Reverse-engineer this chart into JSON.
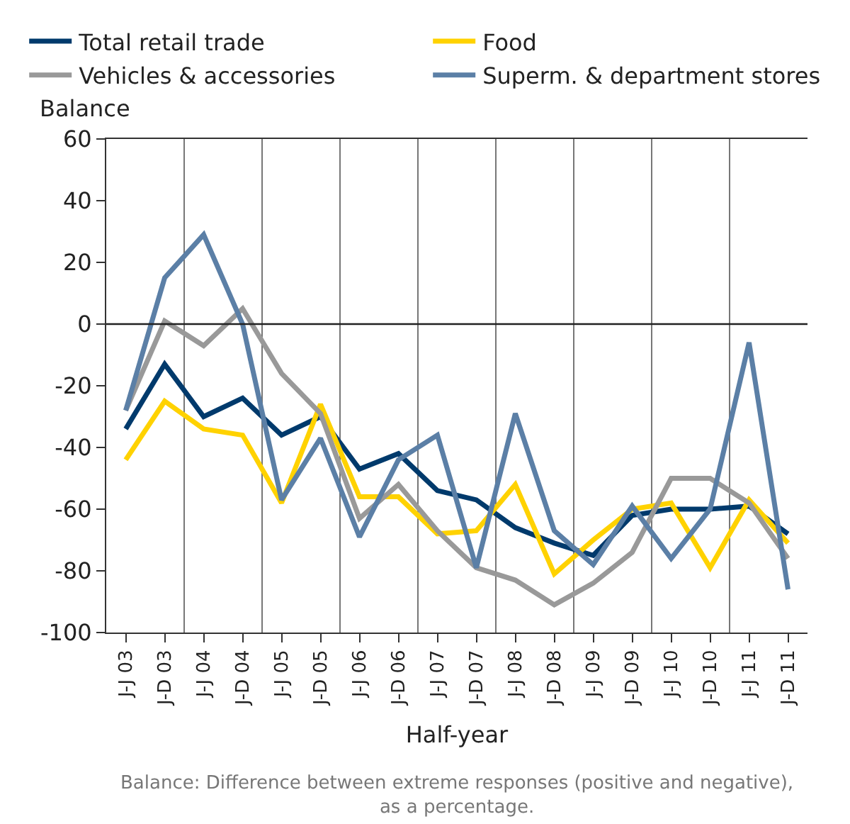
{
  "chart_data": {
    "type": "line",
    "xlabel": "Half-year",
    "ylabel": "Balance",
    "categories": [
      "J-J 03",
      "J-D 03",
      "J-J 04",
      "J-D 04",
      "J-J 05",
      "J-D 05",
      "J-J 06",
      "J-D 06",
      "J-J 07",
      "J-D 07",
      "J-J 08",
      "J-D 08",
      "J-J 09",
      "J-D 09",
      "J-J 10",
      "J-D 10",
      "J-J 11",
      "J-D 11"
    ],
    "series": [
      {
        "name": "Total retail trade",
        "color": "#003a6c",
        "values": [
          -34,
          -13,
          -30,
          -24,
          -36,
          -30,
          -47,
          -42,
          -54,
          -57,
          -66,
          -71,
          -75,
          -62,
          -60,
          -60,
          -59,
          -68
        ]
      },
      {
        "name": "Food",
        "color": "#ffd200",
        "values": [
          -44,
          -25,
          -34,
          -36,
          -58,
          -26,
          -56,
          -56,
          -68,
          -67,
          -52,
          -81,
          -70,
          -60,
          -58,
          -79,
          -57,
          -71
        ]
      },
      {
        "name": "Vehicles & accessories",
        "color": "#999999",
        "values": [
          -28,
          1,
          -7,
          5,
          -16,
          -29,
          -63,
          -52,
          -67,
          -79,
          -83,
          -91,
          -84,
          -74,
          -50,
          -50,
          -58,
          -76
        ]
      },
      {
        "name": "Superm. & department stores",
        "color": "#5b7fa6",
        "values": [
          -28,
          15,
          29,
          0,
          -57,
          -37,
          -69,
          -44,
          -36,
          -79,
          -29,
          -67,
          -78,
          -59,
          -76,
          -60,
          -6,
          -86
        ]
      }
    ],
    "ylim": [
      -100,
      60
    ],
    "yticks": [
      -100,
      -80,
      -60,
      -40,
      -20,
      0,
      20,
      40,
      60
    ],
    "ref_lines": [
      {
        "axis": "y",
        "value": 0
      }
    ],
    "grid": "x",
    "legend": "top",
    "marker": "none",
    "line_style": "solid",
    "annotations": [
      "Balance: Difference between extreme responses (positive and negative), as a percentage."
    ]
  }
}
